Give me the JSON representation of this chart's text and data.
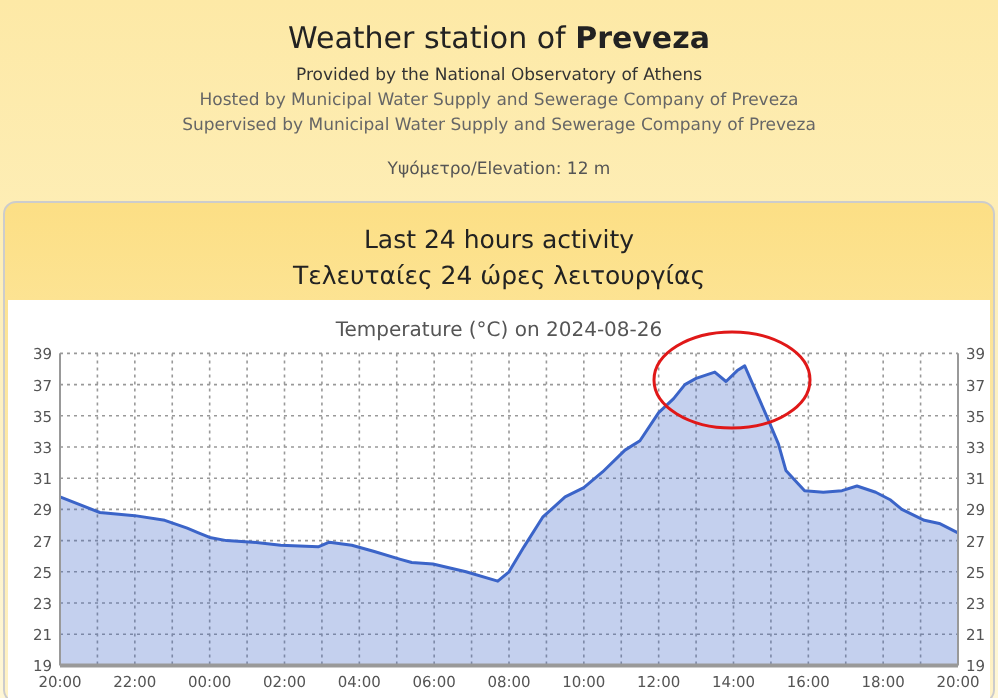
{
  "chart_data": {
    "type": "area",
    "title": "Temperature (°C) on 2024-08-26",
    "annotations": [
      "Weather station of Preveza",
      "Provided by the National Observatory of Athens",
      "Hosted by Municipal Water Supply and Sewerage Company of Preveza",
      "Supervised by Municipal Water Supply and Sewerage Company of Preveza",
      "Υψόμετρο/Elevation: 12 m",
      "Last 24 hours activity",
      "Τελευταίες 24 ώρες λειτουργίας"
    ],
    "series": [
      {
        "color": "#3b64c8",
        "x": [
          "2024-08-25T20:00",
          "2024-08-25T21:04",
          "2024-08-25T22:00",
          "2024-08-25T22:48",
          "2024-08-25T23:24",
          "2024-08-25T23:42",
          "2024-08-26T00:00",
          "2024-08-26T00:27",
          "2024-08-26T01:09",
          "2024-08-26T01:54",
          "2024-08-26T02:54",
          "2024-08-26T03:12",
          "2024-08-26T03:48",
          "2024-08-26T04:24",
          "2024-08-26T05:06",
          "2024-08-26T05:24",
          "2024-08-26T05:58",
          "2024-08-26T06:51",
          "2024-08-26T07:42",
          "2024-08-26T08:00",
          "2024-08-26T08:24",
          "2024-08-26T08:54",
          "2024-08-26T09:30",
          "2024-08-26T10:00",
          "2024-08-26T10:30",
          "2024-08-26T11:06",
          "2024-08-26T11:30",
          "2024-08-26T12:00",
          "2024-08-26T12:24",
          "2024-08-26T12:42",
          "2024-08-26T13:00",
          "2024-08-26T13:30",
          "2024-08-26T13:48",
          "2024-08-26T14:06",
          "2024-08-26T14:18",
          "2024-08-26T14:42",
          "2024-08-26T14:54",
          "2024-08-26T15:12",
          "2024-08-26T15:24",
          "2024-08-26T15:54",
          "2024-08-26T16:24",
          "2024-08-26T16:54",
          "2024-08-26T17:18",
          "2024-08-26T17:48",
          "2024-08-26T18:12",
          "2024-08-26T18:30",
          "2024-08-26T19:06",
          "2024-08-26T19:30",
          "2024-08-26T20:00"
        ],
        "values": [
          29.8,
          28.8,
          28.6,
          28.3,
          27.8,
          27.5,
          27.2,
          27,
          26.9,
          26.7,
          26.6,
          26.9,
          26.7,
          26.3,
          25.8,
          25.6,
          25.5,
          25,
          24.4,
          25,
          26.6,
          28.5,
          29.8,
          30.4,
          31.4,
          32.8,
          33.4,
          35.2,
          36.1,
          37,
          37.4,
          37.8,
          37.2,
          37.9,
          38.2,
          36,
          34.9,
          33.2,
          31.5,
          30.2,
          30.1,
          30.2,
          30.5,
          30.1,
          29.6,
          29,
          28.3,
          28.1,
          27.5
        ]
      }
    ],
    "xlim": [
      "2024-08-25T20:00",
      "2024-08-26T20:00"
    ],
    "xticks": [
      {
        "value": "2024-08-25T20:00",
        "label": "20:00"
      },
      {
        "value": "2024-08-25T21:00",
        "label": null
      },
      {
        "value": "2024-08-25T22:00",
        "label": "22:00"
      },
      {
        "value": "2024-08-25T23:00",
        "label": null
      },
      {
        "value": "2024-08-26T00:00",
        "label": "00:00"
      },
      {
        "value": "2024-08-26T01:00",
        "label": null
      },
      {
        "value": "2024-08-26T02:00",
        "label": "02:00"
      },
      {
        "value": "2024-08-26T03:00",
        "label": null
      },
      {
        "value": "2024-08-26T04:00",
        "label": "04:00"
      },
      {
        "value": "2024-08-26T05:00",
        "label": null
      },
      {
        "value": "2024-08-26T06:00",
        "label": "06:00"
      },
      {
        "value": "2024-08-26T07:00",
        "label": null
      },
      {
        "value": "2024-08-26T08:00",
        "label": "08:00"
      },
      {
        "value": "2024-08-26T09:00",
        "label": null
      },
      {
        "value": "2024-08-26T10:00",
        "label": "10:00"
      },
      {
        "value": "2024-08-26T11:00",
        "label": null
      },
      {
        "value": "2024-08-26T12:00",
        "label": "12:00"
      },
      {
        "value": "2024-08-26T13:00",
        "label": null
      },
      {
        "value": "2024-08-26T14:00",
        "label": "14:00"
      },
      {
        "value": "2024-08-26T15:00",
        "label": null
      },
      {
        "value": "2024-08-26T16:00",
        "label": "16:00"
      },
      {
        "value": "2024-08-26T17:00",
        "label": null
      },
      {
        "value": "2024-08-26T18:00",
        "label": "18:00"
      },
      {
        "value": "2024-08-26T19:00",
        "label": null
      },
      {
        "value": "2024-08-26T20:00",
        "label": "20:00"
      }
    ],
    "ylim": [
      19,
      39
    ],
    "yticks": [
      19,
      21,
      23,
      25,
      27,
      29,
      31,
      33,
      35,
      37,
      39
    ],
    "y2lim": [
      19,
      39
    ],
    "y2ticks": [
      19,
      21,
      23,
      25,
      27,
      29,
      31,
      33,
      35,
      37,
      39
    ],
    "grid": true,
    "marker": "none",
    "line_style": "solid"
  }
}
